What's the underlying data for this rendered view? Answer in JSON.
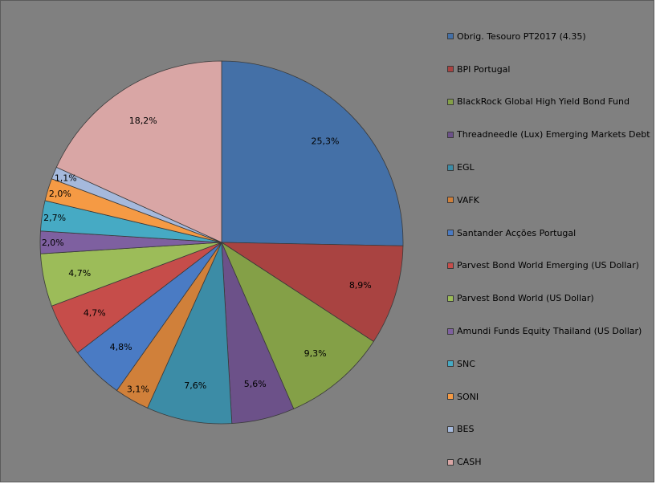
{
  "chart_data": {
    "type": "pie",
    "title": "",
    "legend_position": "right",
    "start_angle_deg": 0,
    "direction": "clockwise",
    "slices": [
      {
        "label": "Obrig. Tesouro PT2017  (4.35)",
        "value": 25.3,
        "display": "25,3%",
        "color": "#4470a7"
      },
      {
        "label": "BPI Portugal",
        "value": 8.9,
        "display": "8,9%",
        "color": "#a94341"
      },
      {
        "label": "BlackRock Global High Yield Bond Fund",
        "value": 9.3,
        "display": "9,3%",
        "color": "#84a047"
      },
      {
        "label": "Threadneedle (Lux) Emerging Markets Debt",
        "value": 5.6,
        "display": "5,6%",
        "color": "#6c5189"
      },
      {
        "label": "EGL",
        "value": 7.6,
        "display": "7,6%",
        "color": "#3c8ca6"
      },
      {
        "label": "VAFK",
        "value": 3.1,
        "display": "3,1%",
        "color": "#d0803a"
      },
      {
        "label": "Santander Acções Portugal",
        "value": 4.8,
        "display": "4,8%",
        "color": "#4a7bc4"
      },
      {
        "label": "Parvest Bond World Emerging (US Dollar)",
        "value": 4.7,
        "display": "4,7%",
        "color": "#c64d4a"
      },
      {
        "label": "Parvest Bond World (US Dollar)",
        "value": 4.7,
        "display": "4,7%",
        "color": "#9cbc59"
      },
      {
        "label": "Amundi Funds Equity Thailand (US Dollar)",
        "value": 2.0,
        "display": "2,0%",
        "color": "#7e60a0"
      },
      {
        "label": "SNC",
        "value": 2.7,
        "display": "2,7%",
        "color": "#46aac4"
      },
      {
        "label": "SONI",
        "value": 2.0,
        "display": "2,0%",
        "color": "#f59a44"
      },
      {
        "label": "BES",
        "value": 1.1,
        "display": "1,1%",
        "color": "#a5b9dc"
      },
      {
        "label": "CASH",
        "value": 18.2,
        "display": "18,2%",
        "color": "#d9a6a5"
      }
    ]
  }
}
